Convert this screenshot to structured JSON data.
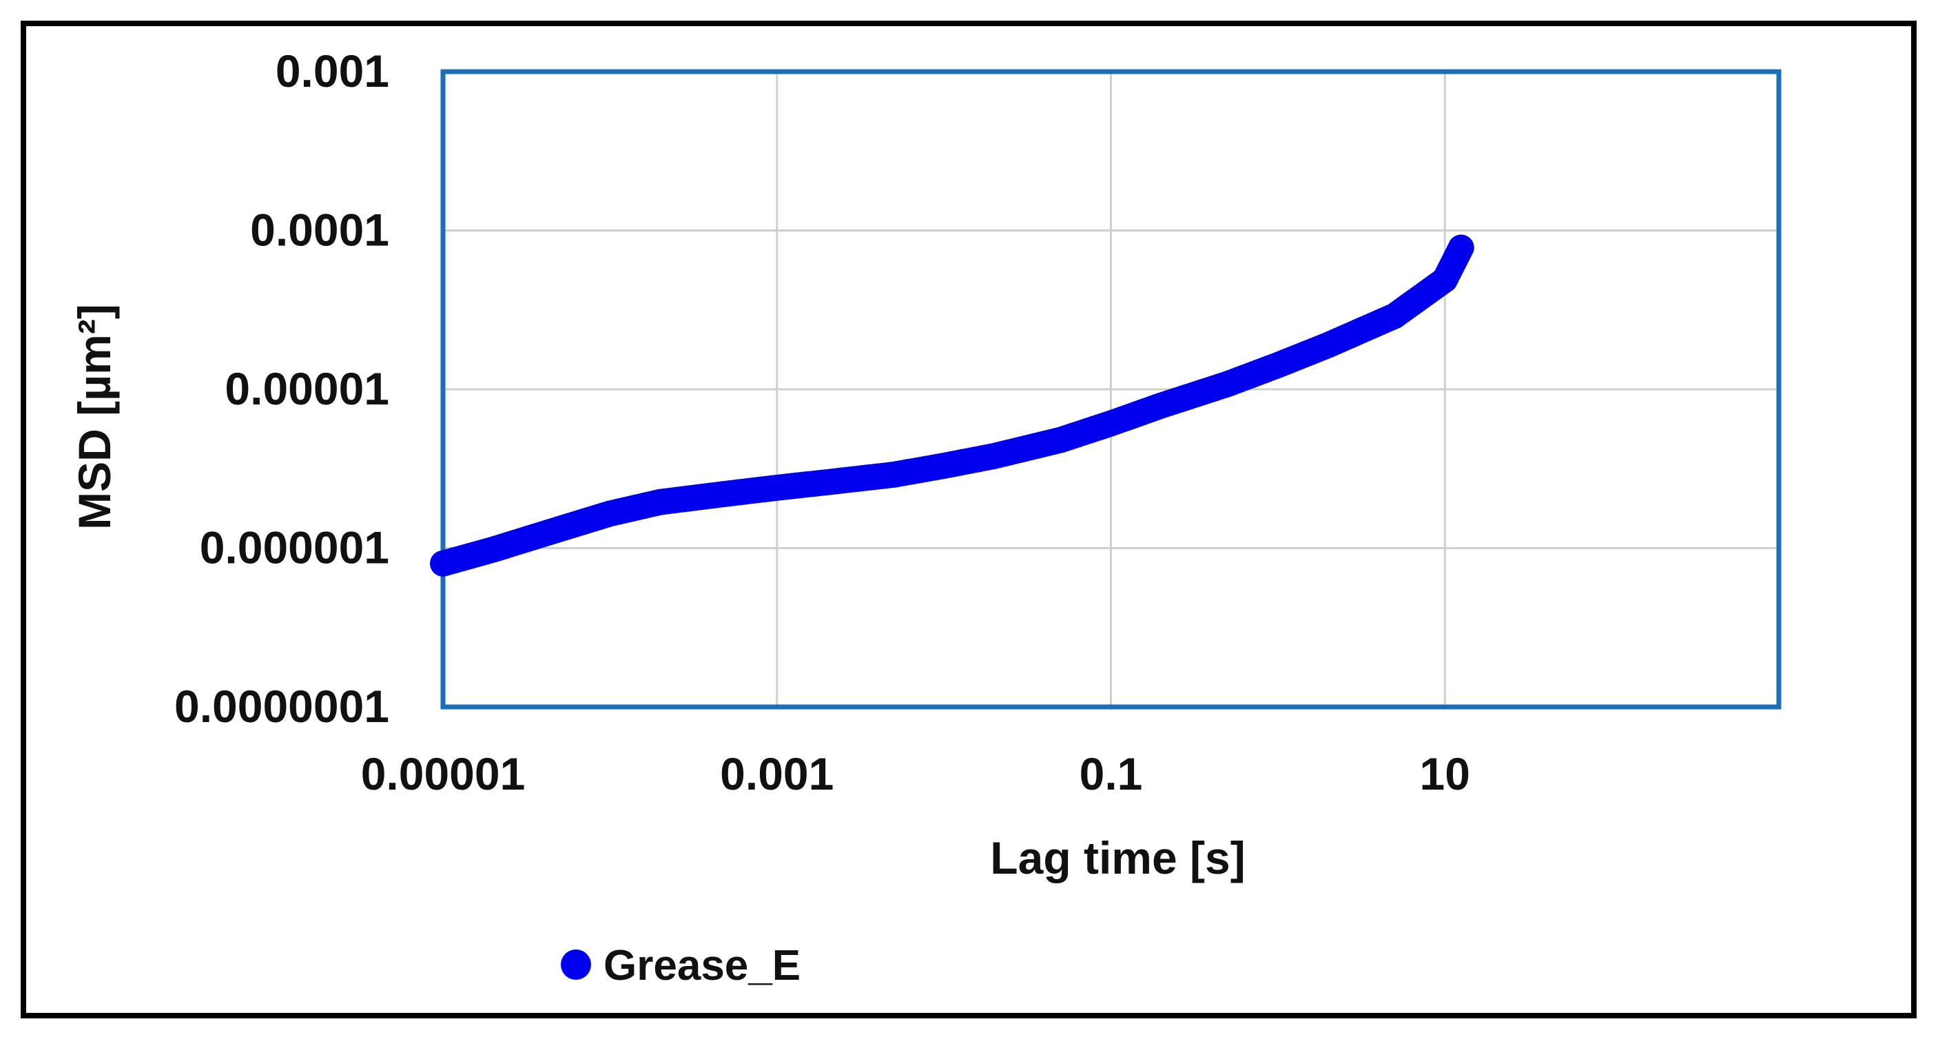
{
  "chart_data": {
    "type": "scatter",
    "xlabel": "Lag time [s]",
    "ylabel": "MSD [µm²]",
    "x_scale": "log",
    "y_scale": "log",
    "xlim": [
      1e-05,
      1000
    ],
    "ylim": [
      1e-07,
      0.001
    ],
    "x_tick_labels": [
      "0.00001",
      "0.001",
      "0.1",
      "10"
    ],
    "x_tick_values": [
      1e-05,
      0.001,
      0.1,
      10
    ],
    "y_tick_labels": [
      "0.0000001",
      "0.000001",
      "0.00001",
      "0.0001",
      "0.001"
    ],
    "y_tick_values": [
      1e-07,
      1e-06,
      1e-05,
      0.0001,
      0.001
    ],
    "grid": true,
    "legend_position": "bottom-left",
    "series": [
      {
        "name": "Grease_E",
        "color": "#0000ee",
        "marker": "circle",
        "x": [
          1e-05,
          2e-05,
          5e-05,
          0.0001,
          0.0002,
          0.0005,
          0.001,
          0.002,
          0.005,
          0.01,
          0.02,
          0.05,
          0.1,
          0.2,
          0.5,
          1,
          2,
          5,
          10,
          12.5
        ],
        "y": [
          8e-07,
          9.8e-07,
          1.32e-06,
          1.65e-06,
          1.95e-06,
          2.2e-06,
          2.4e-06,
          2.6e-06,
          2.9e-06,
          3.3e-06,
          3.8e-06,
          4.8e-06,
          6.1e-06,
          7.9e-06,
          1.08e-05,
          1.42e-05,
          1.9e-05,
          2.9e-05,
          4.9e-05,
          7.8e-05
        ]
      }
    ]
  }
}
